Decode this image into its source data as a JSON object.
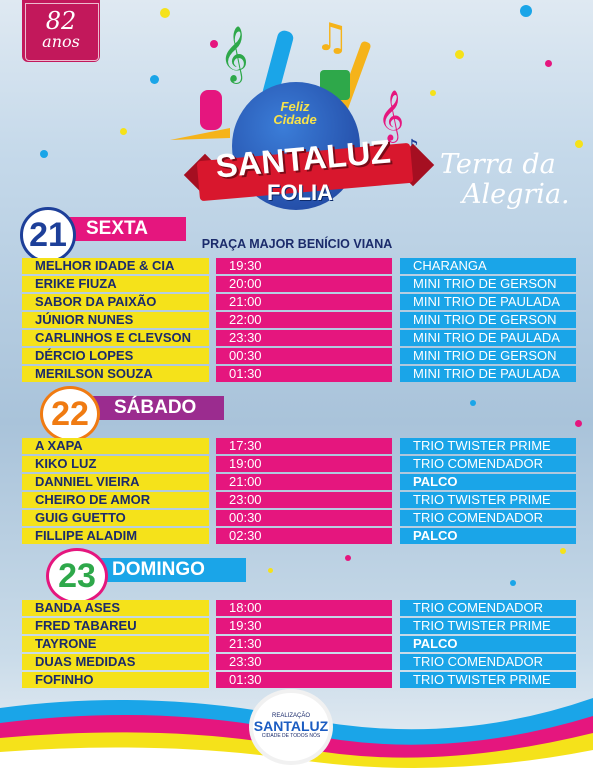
{
  "anniversary": {
    "number": "82",
    "word": "anos"
  },
  "logo": {
    "greeting": "Feliz Cidade",
    "brand": "SANTALUZ",
    "subtitle": "FOLIA"
  },
  "slogan": {
    "line1": "Terra da",
    "line2": "Alegria."
  },
  "venue": "PRAÇA MAJOR BENÍCIO VIANA",
  "days": [
    {
      "number": "21",
      "name": "SEXTA",
      "color": "#e5167e",
      "rows": [
        {
          "artist": "MELHOR IDADE & CIA",
          "time": "19:30",
          "stage": "CHARANGA",
          "bold": false
        },
        {
          "artist": "ERIKE FIUZA",
          "time": "20:00",
          "stage": "MINI TRIO DE GERSON",
          "bold": false
        },
        {
          "artist": "SABOR DA PAIXÃO",
          "time": "21:00",
          "stage": "MINI TRIO DE PAULADA",
          "bold": false
        },
        {
          "artist": "JÚNIOR NUNES",
          "time": "22:00",
          "stage": "MINI TRIO DE GERSON",
          "bold": false
        },
        {
          "artist": "CARLINHOS E CLEVSON",
          "time": "23:30",
          "stage": "MINI TRIO DE PAULADA",
          "bold": false
        },
        {
          "artist": "DÉRCIO LOPES",
          "time": "00:30",
          "stage": "MINI TRIO DE GERSON",
          "bold": false
        },
        {
          "artist": "MERILSON SOUZA",
          "time": "01:30",
          "stage": "MINI TRIO DE PAULADA",
          "bold": false
        }
      ]
    },
    {
      "number": "22",
      "name": "SÁBADO",
      "color": "#9b2c8f",
      "rows": [
        {
          "artist": "A XAPA",
          "time": "17:30",
          "stage": "TRIO TWISTER PRIME",
          "bold": false
        },
        {
          "artist": "KIKO LUZ",
          "time": "19:00",
          "stage": "TRIO COMENDADOR",
          "bold": false
        },
        {
          "artist": "DANNIEL VIEIRA",
          "time": "21:00",
          "stage": "PALCO",
          "bold": true
        },
        {
          "artist": "CHEIRO DE AMOR",
          "time": "23:00",
          "stage": "TRIO TWISTER PRIME",
          "bold": false
        },
        {
          "artist": "GUIG GUETTO",
          "time": "00:30",
          "stage": "TRIO COMENDADOR",
          "bold": false
        },
        {
          "artist": "FILLIPE ALADIM",
          "time": "02:30",
          "stage": "PALCO",
          "bold": true
        }
      ]
    },
    {
      "number": "23",
      "name": "DOMINGO",
      "color": "#1aa5e8",
      "rows": [
        {
          "artist": "BANDA ASES",
          "time": "18:00",
          "stage": "TRIO COMENDADOR",
          "bold": false
        },
        {
          "artist": "FRED TABAREU",
          "time": "19:30",
          "stage": "TRIO TWISTER PRIME",
          "bold": false
        },
        {
          "artist": "TAYRONE",
          "time": "21:30",
          "stage": "PALCO",
          "bold": true
        },
        {
          "artist": "DUAS MEDIDAS",
          "time": "23:30",
          "stage": "TRIO COMENDADOR",
          "bold": false
        },
        {
          "artist": "FOFINHO",
          "time": "01:30",
          "stage": "TRIO TWISTER PRIME",
          "bold": false
        }
      ]
    }
  ],
  "footer": {
    "label": "REALIZAÇÃO",
    "brand": "SANTALUZ",
    "tagline": "CIDADE DE TODOS NÓS"
  },
  "colors": {
    "yellow": "#f5e21a",
    "magenta": "#e5167e",
    "cyan": "#1aa5e8",
    "navy": "#1b2b6b"
  }
}
